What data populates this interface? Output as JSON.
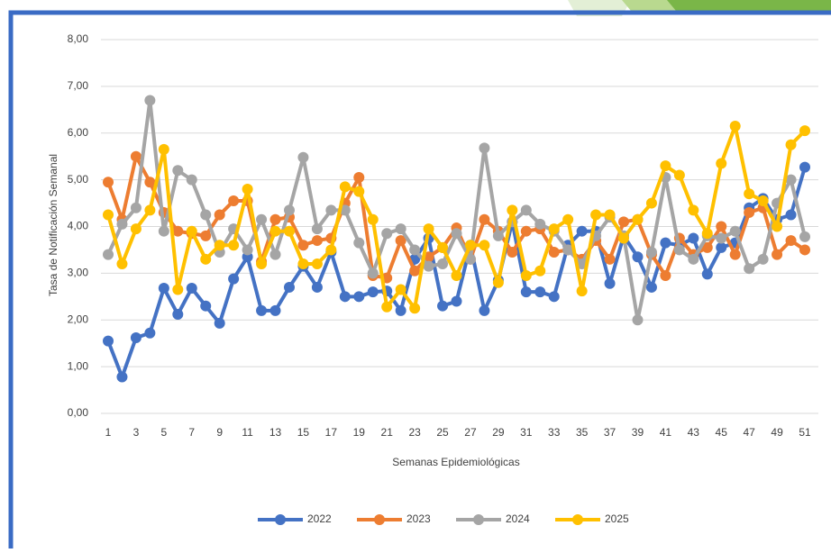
{
  "chart_data": {
    "type": "line",
    "y_label": "Tasa de Notificación Semanal",
    "x_label": "Semanas Epidemiológicas",
    "categories": [
      1,
      null,
      3,
      null,
      5,
      null,
      7,
      null,
      9,
      null,
      11,
      null,
      13,
      null,
      15,
      null,
      17,
      null,
      19,
      null,
      21,
      null,
      23,
      null,
      25,
      null,
      27,
      null,
      29,
      null,
      31,
      null,
      33,
      null,
      35,
      null,
      37,
      null,
      39,
      null,
      41,
      null,
      43,
      null,
      45,
      null,
      47,
      null,
      49,
      null,
      51
    ],
    "ylim": [
      0,
      8
    ],
    "yticks": [
      {
        "value": 0,
        "label": "0,00"
      },
      {
        "value": 1,
        "label": "1,00"
      },
      {
        "value": 2,
        "label": "2,00"
      },
      {
        "value": 3,
        "label": "3,00"
      },
      {
        "value": 4,
        "label": "4,00"
      },
      {
        "value": 5,
        "label": "5,00"
      },
      {
        "value": 6,
        "label": "6,00"
      },
      {
        "value": 7,
        "label": "7,00"
      },
      {
        "value": 8,
        "label": "8,00"
      }
    ],
    "grid": true,
    "legend": "bottom",
    "series": [
      {
        "name": "2022",
        "color": "#4472c4",
        "values": [
          1.55,
          0.78,
          1.62,
          1.72,
          2.68,
          2.12,
          2.68,
          2.3,
          1.93,
          2.88,
          3.35,
          2.2,
          2.2,
          2.7,
          3.15,
          2.7,
          3.45,
          2.5,
          2.5,
          2.6,
          2.62,
          2.2,
          3.3,
          3.75,
          2.3,
          2.4,
          3.6,
          2.2,
          2.85,
          4.1,
          2.6,
          2.6,
          2.5,
          3.6,
          3.9,
          3.9,
          2.78,
          3.8,
          3.35,
          2.7,
          3.65,
          3.6,
          3.75,
          2.98,
          3.55,
          3.65,
          4.4,
          4.6,
          4.15,
          4.25,
          5.27
        ]
      },
      {
        "name": "2023",
        "color": "#ed7d31",
        "values": [
          4.95,
          4.15,
          5.5,
          4.95,
          4.3,
          3.9,
          3.85,
          3.8,
          4.25,
          4.55,
          4.55,
          3.25,
          4.15,
          4.2,
          3.6,
          3.7,
          3.75,
          4.5,
          5.05,
          2.95,
          2.9,
          3.7,
          3.05,
          3.35,
          3.55,
          3.97,
          3.3,
          4.15,
          3.9,
          3.45,
          3.9,
          3.95,
          3.45,
          3.5,
          3.3,
          3.7,
          3.3,
          4.1,
          4.15,
          3.4,
          2.95,
          3.75,
          3.4,
          3.55,
          4.0,
          3.4,
          4.3,
          4.4,
          3.4,
          3.7,
          3.5
        ]
      },
      {
        "name": "2024",
        "color": "#a5a5a5",
        "values": [
          3.4,
          4.05,
          4.4,
          6.7,
          3.9,
          5.2,
          5.0,
          4.25,
          3.45,
          3.95,
          3.5,
          4.15,
          3.4,
          4.35,
          5.48,
          3.95,
          4.35,
          4.35,
          3.65,
          3.0,
          3.85,
          3.95,
          3.5,
          3.15,
          3.2,
          3.85,
          3.3,
          5.68,
          3.8,
          4.1,
          4.35,
          4.05,
          3.9,
          3.5,
          3.2,
          3.8,
          4.2,
          3.8,
          2.0,
          3.45,
          5.05,
          3.5,
          3.3,
          3.8,
          3.75,
          3.9,
          3.1,
          3.3,
          4.5,
          5.0,
          3.78
        ]
      },
      {
        "name": "2025",
        "color": "#ffc000",
        "values": [
          4.25,
          3.2,
          3.95,
          4.35,
          5.65,
          2.65,
          3.9,
          3.3,
          3.6,
          3.6,
          4.8,
          3.2,
          3.9,
          3.9,
          3.2,
          3.2,
          3.5,
          4.85,
          4.75,
          4.15,
          2.28,
          2.65,
          2.25,
          3.95,
          3.55,
          2.95,
          3.6,
          3.6,
          2.8,
          4.35,
          2.95,
          3.05,
          3.95,
          4.15,
          2.62,
          4.25,
          4.25,
          3.75,
          4.15,
          4.5,
          5.3,
          5.1,
          4.35,
          3.85,
          5.35,
          6.15,
          4.7,
          4.55,
          4.0,
          5.75,
          6.05
        ]
      }
    ]
  }
}
